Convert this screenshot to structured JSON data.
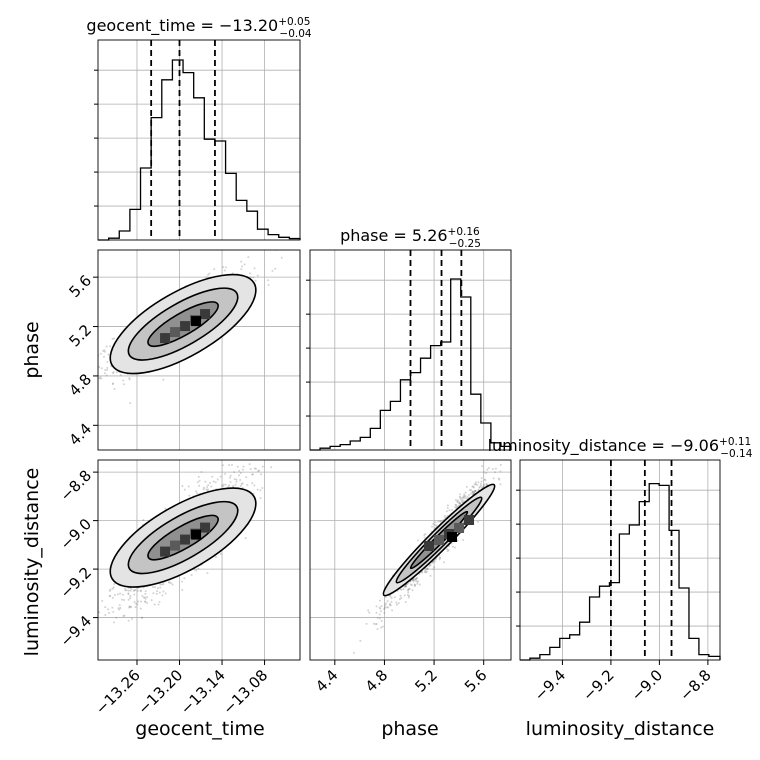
{
  "chart_data": {
    "type": "corner",
    "parameters": [
      {
        "name": "geocent_time",
        "range": [
          -13.315,
          -13.03
        ],
        "ticks": [
          "−13.26",
          "−13.20",
          "−13.14",
          "−13.08"
        ],
        "tick_values": [
          -13.26,
          -13.2,
          -13.14,
          -13.08
        ],
        "title": {
          "main": "geocent_time = −13.20",
          "sup": "+0.05",
          "sub": "−0.04"
        },
        "quantiles": [
          -13.24,
          -13.2,
          -13.15
        ],
        "hist_bins": [
          -13.315,
          -13.3,
          -13.285,
          -13.27,
          -13.255,
          -13.24,
          -13.225,
          -13.21,
          -13.195,
          -13.18,
          -13.165,
          -13.15,
          -13.135,
          -13.12,
          -13.105,
          -13.09,
          -13.075,
          -13.06,
          -13.045,
          -13.03
        ],
        "hist_counts": [
          0.0,
          0.01,
          0.05,
          0.17,
          0.4,
          0.68,
          0.89,
          1.0,
          0.93,
          0.79,
          0.56,
          0.55,
          0.37,
          0.22,
          0.16,
          0.06,
          0.03,
          0.015,
          0.008
        ]
      },
      {
        "name": "phase",
        "range": [
          4.2,
          5.82
        ],
        "ticks": [
          "4.4",
          "4.8",
          "5.2",
          "5.6"
        ],
        "tick_values": [
          4.4,
          4.8,
          5.2,
          5.6
        ],
        "title": {
          "main": "phase = 5.26",
          "sup": "+0.16",
          "sub": "−0.25"
        },
        "quantiles": [
          5.01,
          5.26,
          5.42
        ],
        "hist_bins": [
          4.2,
          4.281,
          4.362,
          4.443,
          4.524,
          4.605,
          4.686,
          4.767,
          4.848,
          4.929,
          5.01,
          5.091,
          5.172,
          5.253,
          5.334,
          5.415,
          5.496,
          5.577,
          5.658,
          5.739,
          5.82
        ],
        "hist_counts": [
          0.0,
          0.01,
          0.02,
          0.03,
          0.05,
          0.07,
          0.12,
          0.22,
          0.27,
          0.39,
          0.43,
          0.51,
          0.58,
          0.6,
          0.95,
          0.85,
          0.31,
          0.15,
          0.04,
          0.02
        ]
      },
      {
        "name": "luminosity_distance",
        "range": [
          -9.575,
          -8.75
        ],
        "ticks": [
          "−9.4",
          "−9.2",
          "−9.0",
          "−8.8"
        ],
        "tick_values": [
          -9.4,
          -9.2,
          -9.0,
          -8.8
        ],
        "title": {
          "main": "luminosity_distance = −9.06",
          "sup": "+0.11",
          "sub": "−0.14"
        },
        "quantiles": [
          -9.2,
          -9.06,
          -8.95
        ],
        "hist_bins": [
          -9.575,
          -9.534,
          -9.493,
          -9.452,
          -9.411,
          -9.37,
          -9.329,
          -9.288,
          -9.247,
          -9.206,
          -9.165,
          -9.124,
          -9.083,
          -9.042,
          -9.001,
          -8.96,
          -8.919,
          -8.878,
          -8.837,
          -8.796,
          -8.75
        ],
        "hist_counts": [
          0.0,
          0.01,
          0.03,
          0.07,
          0.12,
          0.14,
          0.21,
          0.35,
          0.41,
          0.43,
          0.7,
          0.75,
          0.88,
          0.98,
          0.97,
          0.72,
          0.4,
          0.12,
          0.03,
          0.02
        ]
      }
    ],
    "contour_levels": [
      "inner",
      "middle",
      "outer"
    ],
    "colors": {
      "hist": "#000000",
      "quantile_line": "#000000",
      "grid": "#b0b0b0",
      "scatter": "#808080"
    }
  }
}
